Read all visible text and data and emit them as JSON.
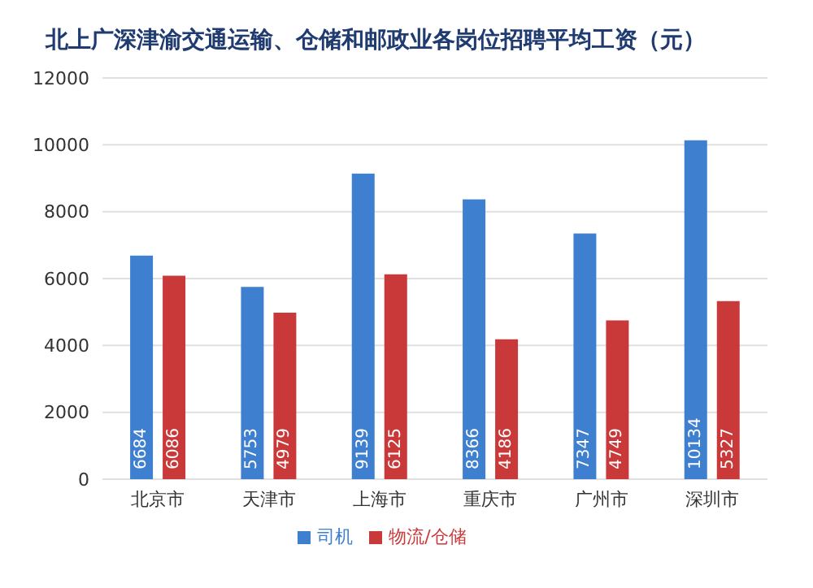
{
  "chart_data": {
    "type": "bar",
    "title": "北上广深津渝交通运输、仓储和邮政业各岗位招聘平均工资（元）",
    "categories": [
      "北京市",
      "天津市",
      "上海市",
      "重庆市",
      "广州市",
      "深圳市"
    ],
    "series": [
      {
        "name": "司机",
        "color": "#3f7fcf",
        "values": [
          6684,
          5753,
          9139,
          8366,
          7347,
          10134
        ]
      },
      {
        "name": "物流/仓储",
        "color": "#c9393a",
        "values": [
          6086,
          4979,
          6125,
          4186,
          4749,
          5327
        ]
      }
    ],
    "ylim": [
      0,
      12000
    ],
    "yticks": [
      0,
      2000,
      4000,
      6000,
      8000,
      10000,
      12000
    ],
    "grid": "y",
    "legend": "bottom",
    "data_labels": true
  }
}
